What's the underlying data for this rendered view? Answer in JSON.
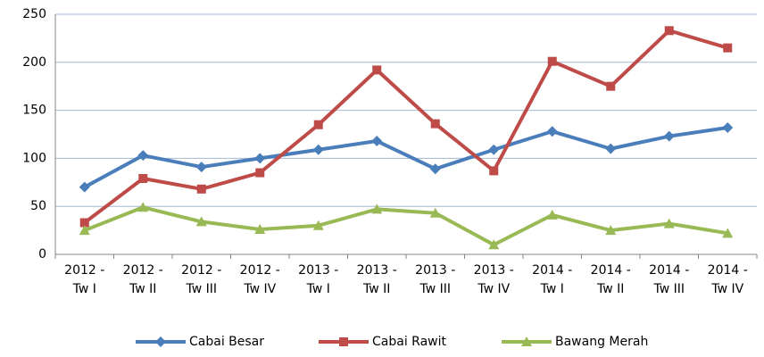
{
  "chart_data": {
    "type": "line",
    "categories": [
      "2012 - Tw I",
      "2012 - Tw II",
      "2012 - Tw III",
      "2012 - Tw IV",
      "2013 - Tw I",
      "2013 - Tw II",
      "2013 - Tw III",
      "2013 - Tw IV",
      "2014 - Tw I",
      "2014 - Tw II",
      "2014 - Tw III",
      "2014 - Tw IV"
    ],
    "series": [
      {
        "name": "Cabai Besar",
        "color": "#4a7ebb",
        "marker": "diamond",
        "values": [
          70,
          103,
          91,
          100,
          109,
          118,
          89,
          109,
          128,
          110,
          123,
          132
        ]
      },
      {
        "name": "Cabai Rawit",
        "color": "#be4b48",
        "marker": "square",
        "values": [
          33,
          79,
          68,
          85,
          135,
          192,
          136,
          87,
          201,
          175,
          233,
          215
        ]
      },
      {
        "name": "Bawang Merah",
        "color": "#98b954",
        "marker": "triangle",
        "values": [
          25,
          49,
          34,
          26,
          30,
          47,
          43,
          10,
          41,
          25,
          32,
          22
        ]
      }
    ],
    "ylim": [
      0,
      250
    ],
    "yticks": [
      0,
      50,
      100,
      150,
      200,
      250
    ],
    "grid": true,
    "legend": "bottom"
  }
}
